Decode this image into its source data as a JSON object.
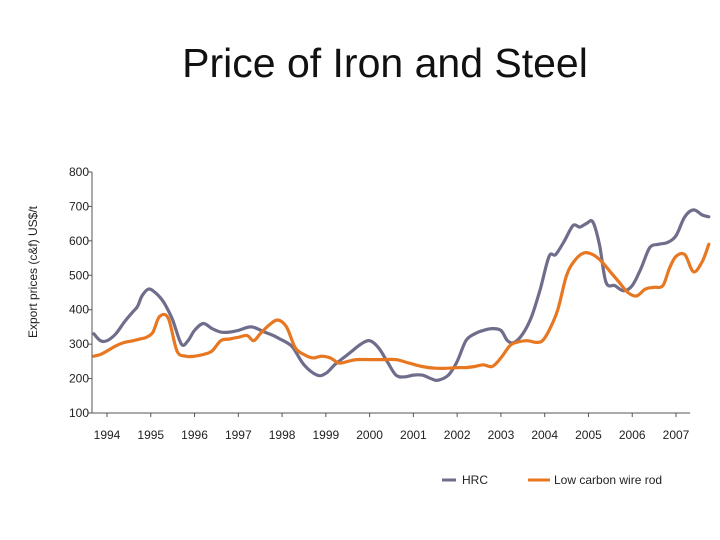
{
  "chart_data": {
    "type": "line",
    "title": "Price of Iron and Steel",
    "xlabel": "",
    "ylabel": "Export prices (c&f) US$/t",
    "ylim": [
      100,
      800
    ],
    "xlim": [
      1993.7,
      2007.75
    ],
    "yticks": [
      100,
      200,
      300,
      400,
      500,
      600,
      700,
      800
    ],
    "categories": [
      "1994",
      "1995",
      "1996",
      "1997",
      "1998",
      "1999",
      "2000",
      "2001",
      "2002",
      "2003",
      "2004",
      "2005",
      "2006",
      "2007"
    ],
    "series": [
      {
        "name": "HRC",
        "color": "#6e6e8c",
        "x": [
          1993.7,
          1993.85,
          1994.0,
          1994.2,
          1994.4,
          1994.6,
          1994.7,
          1994.8,
          1994.95,
          1995.1,
          1995.25,
          1995.35,
          1995.5,
          1995.7,
          1995.85,
          1996.0,
          1996.2,
          1996.4,
          1996.6,
          1996.8,
          1997.0,
          1997.3,
          1997.6,
          1997.8,
          1997.95,
          1998.1,
          1998.25,
          1998.5,
          1998.8,
          1999.0,
          1999.2,
          1999.4,
          1999.6,
          1999.8,
          2000.0,
          2000.2,
          2000.4,
          2000.6,
          2000.8,
          2001.0,
          2001.2,
          2001.4,
          2001.55,
          2001.8,
          2002.0,
          2002.2,
          2002.4,
          2002.6,
          2002.8,
          2003.0,
          2003.15,
          2003.3,
          2003.5,
          2003.7,
          2003.9,
          2004.1,
          2004.25,
          2004.45,
          2004.65,
          2004.8,
          2004.95,
          2005.1,
          2005.25,
          2005.4,
          2005.6,
          2005.8,
          2006.0,
          2006.2,
          2006.4,
          2006.6,
          2006.8,
          2007.0,
          2007.2,
          2007.4,
          2007.6,
          2007.75
        ],
        "values": [
          330,
          310,
          310,
          330,
          365,
          395,
          410,
          440,
          460,
          450,
          430,
          410,
          370,
          300,
          310,
          340,
          360,
          345,
          335,
          335,
          340,
          350,
          335,
          325,
          315,
          305,
          290,
          240,
          210,
          215,
          240,
          260,
          280,
          300,
          310,
          290,
          250,
          210,
          205,
          210,
          210,
          200,
          195,
          210,
          250,
          310,
          330,
          340,
          345,
          340,
          310,
          305,
          330,
          380,
          460,
          555,
          560,
          600,
          645,
          640,
          650,
          655,
          590,
          480,
          470,
          455,
          470,
          520,
          580,
          590,
          595,
          615,
          670,
          690,
          675,
          670
        ]
      },
      {
        "name": "Low carbon wire rod",
        "color": "#e87722",
        "x": [
          1993.7,
          1993.85,
          1994.0,
          1994.2,
          1994.4,
          1994.6,
          1994.75,
          1994.9,
          1995.05,
          1995.2,
          1995.4,
          1995.6,
          1995.8,
          1996.0,
          1996.2,
          1996.4,
          1996.6,
          1996.8,
          1997.0,
          1997.2,
          1997.35,
          1997.5,
          1997.7,
          1997.9,
          1998.1,
          1998.3,
          1998.5,
          1998.7,
          1998.9,
          1999.1,
          1999.3,
          1999.5,
          1999.7,
          2000.0,
          2000.3,
          2000.6,
          2000.9,
          2001.2,
          2001.5,
          2001.8,
          2002.0,
          2002.2,
          2002.4,
          2002.6,
          2002.8,
          2003.0,
          2003.2,
          2003.35,
          2003.6,
          2003.8,
          2003.95,
          2004.1,
          2004.3,
          2004.5,
          2004.7,
          2004.9,
          2005.1,
          2005.3,
          2005.5,
          2005.7,
          2005.9,
          2006.1,
          2006.3,
          2006.5,
          2006.7,
          2006.85,
          2007.0,
          2007.2,
          2007.4,
          2007.6,
          2007.75
        ],
        "values": [
          265,
          270,
          280,
          295,
          305,
          310,
          315,
          320,
          335,
          380,
          375,
          280,
          265,
          265,
          270,
          280,
          310,
          315,
          320,
          325,
          310,
          330,
          355,
          370,
          350,
          290,
          270,
          260,
          265,
          260,
          245,
          250,
          255,
          255,
          255,
          255,
          245,
          235,
          230,
          230,
          232,
          232,
          235,
          240,
          235,
          260,
          295,
          305,
          310,
          305,
          310,
          340,
          400,
          500,
          545,
          565,
          560,
          540,
          510,
          480,
          450,
          440,
          460,
          465,
          470,
          520,
          555,
          560,
          510,
          540,
          590
        ]
      }
    ]
  }
}
